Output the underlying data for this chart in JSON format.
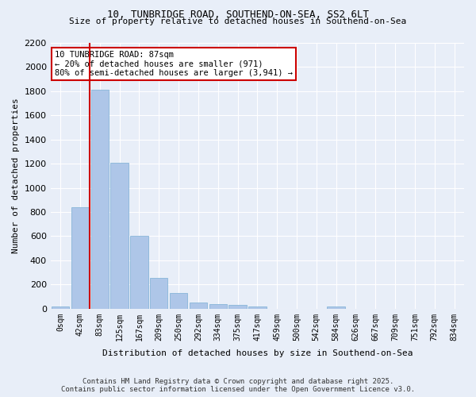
{
  "title1": "10, TUNBRIDGE ROAD, SOUTHEND-ON-SEA, SS2 6LT",
  "title2": "Size of property relative to detached houses in Southend-on-Sea",
  "xlabel": "Distribution of detached houses by size in Southend-on-Sea",
  "ylabel": "Number of detached properties",
  "footer1": "Contains HM Land Registry data © Crown copyright and database right 2025.",
  "footer2": "Contains public sector information licensed under the Open Government Licence v3.0.",
  "bar_labels": [
    "0sqm",
    "42sqm",
    "83sqm",
    "125sqm",
    "167sqm",
    "209sqm",
    "250sqm",
    "292sqm",
    "334sqm",
    "375sqm",
    "417sqm",
    "459sqm",
    "500sqm",
    "542sqm",
    "584sqm",
    "626sqm",
    "667sqm",
    "709sqm",
    "751sqm",
    "792sqm",
    "834sqm"
  ],
  "bar_values": [
    20,
    840,
    1810,
    1210,
    600,
    255,
    130,
    50,
    40,
    30,
    20,
    0,
    0,
    0,
    15,
    0,
    0,
    0,
    0,
    0,
    0
  ],
  "bar_color": "#aec6e8",
  "bar_edge_color": "#7aaed4",
  "background_color": "#e8eef8",
  "grid_color": "#ffffff",
  "annotation_text": "10 TUNBRIDGE ROAD: 87sqm\n← 20% of detached houses are smaller (971)\n80% of semi-detached houses are larger (3,941) →",
  "annotation_box_color": "#ffffff",
  "annotation_box_edge_color": "#cc0000",
  "vline_x": 1,
  "vline_color": "#cc0000",
  "ylim": [
    0,
    2200
  ],
  "yticks": [
    0,
    200,
    400,
    600,
    800,
    1000,
    1200,
    1400,
    1600,
    1800,
    2000,
    2200
  ]
}
